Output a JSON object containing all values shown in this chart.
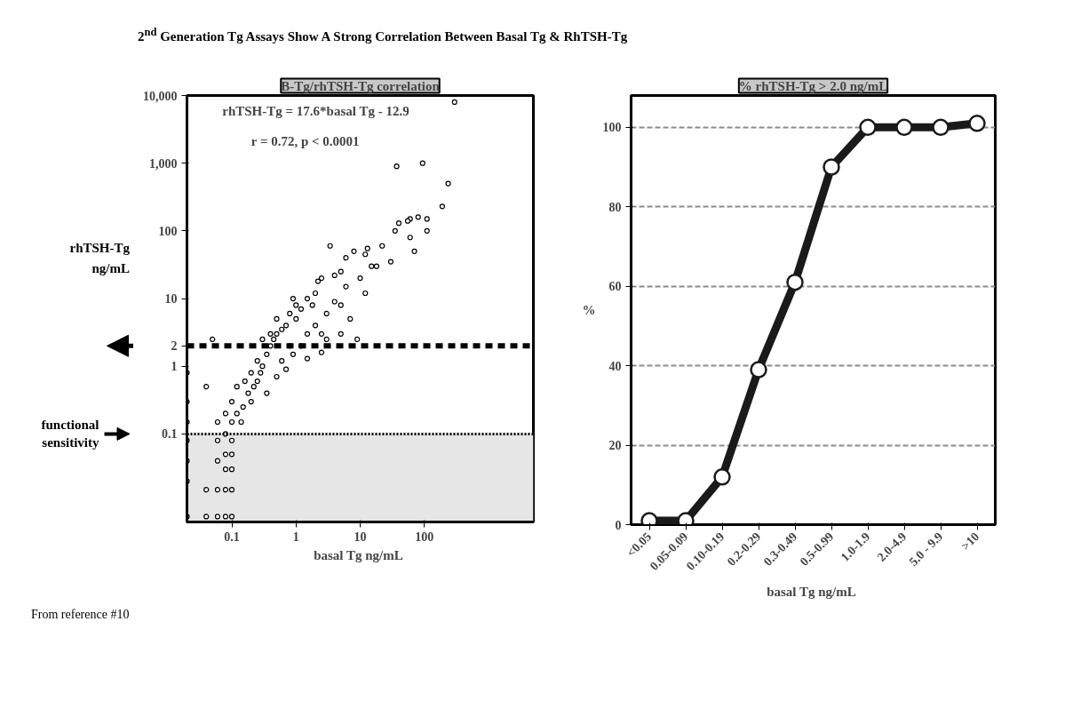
{
  "chart_data": [
    {
      "type": "scatter",
      "title": "2$^{nd}$ Generation Tg Assays Show A Strong Correlation Between Basal Tg & RhTSH-Tg",
      "subtitle": "B-Tg/rhTSH-Tg correlation",
      "xlabel": "basal Tg  ng/mL",
      "ylabel": "rhTSH-Tg ng/mL",
      "log": "xy",
      "marker": "circle",
      "xlim": [
        0.02,
        5000
      ],
      "ylim": [
        0.005,
        10000
      ],
      "xticks": [
        0.1,
        1,
        10,
        100
      ],
      "yticks": [
        0.1,
        1,
        2,
        10,
        100,
        {
          "value": 1000,
          "label": "1,000"
        },
        {
          "value": 10000,
          "label": "10,000"
        }
      ],
      "annotations": [
        "rhTSH-Tg = 17.6*basal Tg - 12.9",
        "r = 0.72, p < 0.0001"
      ],
      "ref_lines": [
        {
          "axis": "y",
          "value": 2,
          "line_style": "dashed",
          "color": "#000000"
        },
        {
          "axis": "y",
          "value": 0.1,
          "line_style": "dotted",
          "color": "#000000",
          "label": "functional sensitivity"
        }
      ],
      "bands": [
        {
          "axis": "y",
          "from": 0.005,
          "to": 0.1,
          "color": "#e6e6e6"
        }
      ],
      "series": [
        {
          "color": "#000000",
          "x": [
            296,
            94,
            37,
            235,
            190,
            110,
            80,
            60,
            55,
            40,
            35,
            22,
            15,
            13,
            12,
            8,
            6,
            5,
            4,
            3.4,
            2.5,
            2.2,
            2,
            1.8,
            1.5,
            1.2,
            1,
            1,
            0.9,
            0.8,
            0.7,
            0.6,
            0.5,
            0.5,
            0.45,
            0.4,
            0.4,
            0.35,
            0.3,
            0.3,
            0.28,
            0.25,
            0.25,
            0.22,
            0.2,
            0.2,
            0.18,
            0.16,
            0.15,
            0.14,
            0.12,
            0.12,
            0.1,
            0.1,
            0.1,
            0.1,
            0.1,
            0.1,
            0.1,
            0.08,
            0.08,
            0.08,
            0.08,
            0.08,
            0.08,
            0.06,
            0.06,
            0.06,
            0.06,
            0.06,
            0.05,
            0.04,
            0.04,
            0.04,
            0.02,
            0.02,
            0.02,
            0.02,
            0.02,
            0.02,
            0.02,
            1.5,
            2,
            3,
            4,
            5,
            6,
            2.5,
            3,
            1.2,
            0.8,
            0.6,
            0.9,
            1.5,
            2.5,
            5,
            7,
            10,
            12,
            18,
            30,
            60,
            110,
            70,
            9,
            0.7,
            0.5,
            0.35
          ],
          "values": [
            8000,
            1000,
            900,
            500,
            230,
            150,
            160,
            150,
            140,
            130,
            100,
            60,
            30,
            55,
            45,
            50,
            40,
            25,
            22,
            60,
            20,
            18,
            12,
            8,
            10,
            7,
            8,
            5,
            10,
            6,
            4,
            3.5,
            3,
            5,
            2.5,
            3,
            2,
            1.5,
            2.5,
            1,
            0.8,
            1.2,
            0.6,
            0.5,
            0.8,
            0.3,
            0.4,
            0.6,
            0.25,
            0.15,
            0.5,
            0.2,
            0.3,
            0.15,
            0.08,
            0.05,
            0.03,
            0.015,
            0.006,
            0.2,
            0.1,
            0.05,
            0.03,
            0.015,
            0.006,
            0.15,
            0.08,
            0.04,
            0.015,
            0.006,
            2.5,
            0.5,
            0.015,
            0.006,
            0.8,
            0.3,
            0.15,
            0.08,
            0.04,
            0.02,
            0.006,
            3,
            4,
            6,
            9,
            8,
            15,
            3,
            2.5,
            2,
            2,
            1.2,
            1.5,
            1.3,
            1.6,
            3,
            5,
            20,
            12,
            30,
            35,
            80,
            100,
            50,
            2.5,
            0.9,
            0.7,
            0.4
          ]
        }
      ]
    },
    {
      "type": "line",
      "subtitle": "% rhTSH-Tg > 2.0 ng/mL",
      "xlabel": "basal Tg  ng/mL",
      "ylabel": "%",
      "grid": "y",
      "marker": "circle",
      "categories": [
        "<0.05",
        "0.05-0.09",
        "0.10-0.19",
        "0.2-0.29",
        "0.3-0.49",
        "0.5-0.99",
        "1.0-1.9",
        "2.0-4.9",
        "5.0 - 9.9",
        ">10"
      ],
      "ylim": [
        0,
        108
      ],
      "yticks": [
        0,
        20,
        40,
        60,
        80,
        100
      ],
      "series": [
        {
          "color": "#1a1a1a",
          "values": [
            1,
            1,
            12,
            39,
            61,
            90,
            100,
            100,
            100,
            101
          ]
        }
      ],
      "annotations": [
        "From reference #10"
      ]
    }
  ]
}
